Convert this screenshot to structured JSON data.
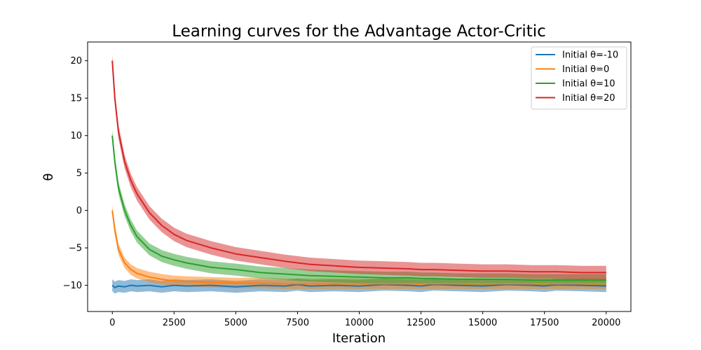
{
  "chart_data": {
    "type": "line",
    "title": "Learning curves for the Advantage Actor-Critic",
    "xlabel": "Iteration",
    "ylabel": "θ",
    "xlim": [
      -1000,
      21000
    ],
    "ylim": [
      -13.5,
      22.5
    ],
    "xticks": [
      0,
      2500,
      5000,
      7500,
      10000,
      12500,
      15000,
      17500,
      20000
    ],
    "xtick_labels": [
      "0",
      "2500",
      "5000",
      "7500",
      "10000",
      "12500",
      "15000",
      "17500",
      "20000"
    ],
    "yticks": [
      -10,
      -5,
      0,
      5,
      10,
      15,
      20
    ],
    "ytick_labels": [
      "−10",
      "−5",
      "0",
      "5",
      "10",
      "15",
      "20"
    ],
    "grid": false,
    "legend_position": "top-right",
    "x": [
      0,
      100,
      250,
      500,
      750,
      1000,
      1500,
      2000,
      2500,
      3000,
      4000,
      5000,
      6000,
      7000,
      7500,
      8000,
      9000,
      10000,
      11000,
      12000,
      12500,
      13000,
      14000,
      15000,
      16000,
      17000,
      17500,
      18000,
      19000,
      20000
    ],
    "series": [
      {
        "name": "Initial θ=-10",
        "color": "#1f77b4",
        "values": [
          -10,
          -10.3,
          -10.1,
          -10.2,
          -10.0,
          -10.1,
          -10.0,
          -10.2,
          -10.0,
          -10.1,
          -10.0,
          -10.2,
          -10.0,
          -10.1,
          -9.9,
          -10.1,
          -10.0,
          -10.1,
          -9.9,
          -10.0,
          -10.1,
          -9.9,
          -10.0,
          -10.1,
          -9.9,
          -10.0,
          -10.1,
          -9.9,
          -10.0,
          -10.1
        ],
        "band": 0.8
      },
      {
        "name": "Initial θ=0",
        "color": "#ff7f0e",
        "values": [
          0,
          -2.6,
          -5.2,
          -7.0,
          -7.9,
          -8.4,
          -8.9,
          -9.2,
          -9.4,
          -9.5,
          -9.6,
          -9.7,
          -9.7,
          -9.8,
          -9.8,
          -9.8,
          -9.8,
          -9.8,
          -9.8,
          -9.8,
          -9.8,
          -9.8,
          -9.8,
          -9.8,
          -9.8,
          -9.8,
          -9.8,
          -9.8,
          -9.8,
          -9.8
        ],
        "band": 0.7
      },
      {
        "name": "Initial θ=10",
        "color": "#2ca02c",
        "values": [
          10,
          6.5,
          3.0,
          0.0,
          -2.0,
          -3.5,
          -5.2,
          -6.1,
          -6.6,
          -7.0,
          -7.6,
          -7.9,
          -8.3,
          -8.5,
          -8.6,
          -8.7,
          -8.8,
          -8.9,
          -9.0,
          -9.0,
          -9.1,
          -9.1,
          -9.2,
          -9.2,
          -9.2,
          -9.3,
          -9.3,
          -9.3,
          -9.3,
          -9.3
        ],
        "band": 0.8
      },
      {
        "name": "Initial θ=20",
        "color": "#d62728",
        "values": [
          20,
          15.0,
          10.5,
          6.5,
          4.0,
          2.2,
          -0.3,
          -2.0,
          -3.2,
          -4.0,
          -5.0,
          -5.8,
          -6.3,
          -6.8,
          -7.0,
          -7.2,
          -7.4,
          -7.6,
          -7.7,
          -7.8,
          -7.9,
          -7.9,
          -8.0,
          -8.1,
          -8.1,
          -8.2,
          -8.2,
          -8.2,
          -8.3,
          -8.3
        ],
        "band": 0.9
      }
    ]
  }
}
